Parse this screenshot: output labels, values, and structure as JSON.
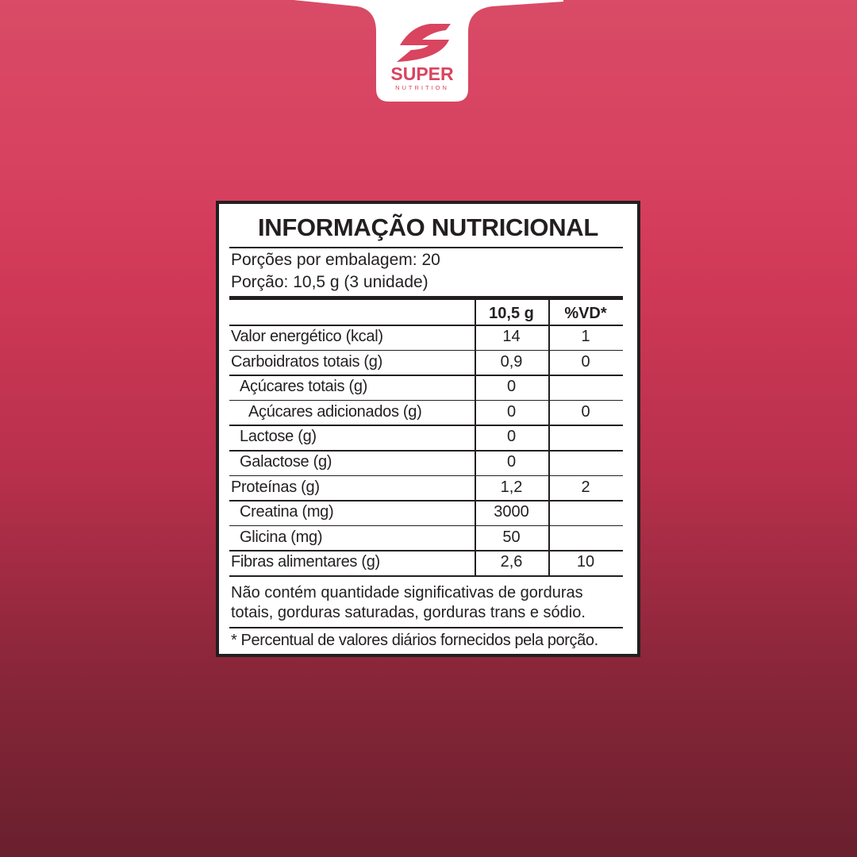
{
  "brand": {
    "name": "SUPER",
    "tagline": "NUTRITION",
    "color": "#d9445f"
  },
  "label": {
    "title": "INFORMAÇÃO NUTRICIONAL",
    "servings_per_package": "Porções por embalagem: 20",
    "serving_size": "Porção: 10,5 g (3 unidade)",
    "columns": [
      "",
      "10,5 g",
      "%VD*"
    ],
    "rows": [
      {
        "name": "Valor energético (kcal)",
        "amount": "14",
        "dv": "1",
        "indent": 0
      },
      {
        "name": "Carboidratos totais (g)",
        "amount": "0,9",
        "dv": "0",
        "indent": 0
      },
      {
        "name": "Açúcares totais (g)",
        "amount": "0",
        "dv": "",
        "indent": 1
      },
      {
        "name": "Açúcares adicionados (g)",
        "amount": "0",
        "dv": "0",
        "indent": 2
      },
      {
        "name": "Lactose (g)",
        "amount": "0",
        "dv": "",
        "indent": 1
      },
      {
        "name": "Galactose (g)",
        "amount": "0",
        "dv": "",
        "indent": 1
      },
      {
        "name": "Proteínas (g)",
        "amount": "1,2",
        "dv": "2",
        "indent": 0
      },
      {
        "name": "Creatina (mg)",
        "amount": "3000",
        "dv": "",
        "indent": 1
      },
      {
        "name": "Glicina (mg)",
        "amount": "50",
        "dv": "",
        "indent": 1
      },
      {
        "name": "Fibras alimentares (g)",
        "amount": "2,6",
        "dv": "10",
        "indent": 0
      }
    ],
    "note_line1": "Não contém quantidade significativas de gorduras",
    "note_line2": "totais, gorduras saturadas, gorduras trans e sódio.",
    "footnote": "* Percentual de valores diários fornecidos pela porção."
  }
}
